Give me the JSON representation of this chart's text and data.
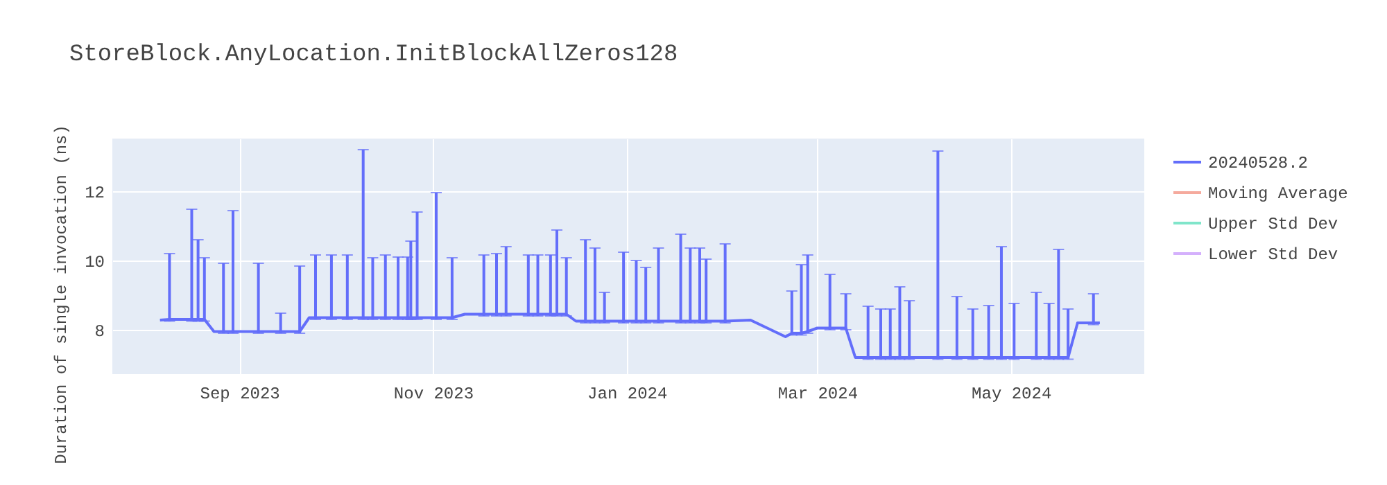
{
  "chart_data": {
    "type": "line",
    "title": "StoreBlock.AnyLocation.InitBlockAllZeros128",
    "ylabel": "Duration of single invocation (ns)",
    "x": [
      "2023-08-07",
      "2023-08-10",
      "2023-08-14",
      "2023-08-17",
      "2023-08-19",
      "2023-08-21",
      "2023-08-24",
      "2023-08-27",
      "2023-08-30",
      "2023-09-03",
      "2023-09-07",
      "2023-09-10",
      "2023-09-14",
      "2023-09-17",
      "2023-09-20",
      "2023-09-23",
      "2023-09-25",
      "2023-09-30",
      "2023-10-05",
      "2023-10-08",
      "2023-10-10",
      "2023-10-13",
      "2023-10-17",
      "2023-10-21",
      "2023-10-24",
      "2023-10-25",
      "2023-10-27",
      "2023-10-30",
      "2023-11-02",
      "2023-11-07",
      "2023-11-11",
      "2023-11-17",
      "2023-11-21",
      "2023-11-24",
      "2023-11-28",
      "2023-12-01",
      "2023-12-04",
      "2023-12-08",
      "2023-12-10",
      "2023-12-13",
      "2023-12-16",
      "2023-12-19",
      "2023-12-22",
      "2023-12-25",
      "2023-12-28",
      "2023-12-31",
      "2024-01-04",
      "2024-01-07",
      "2024-01-11",
      "2024-01-14",
      "2024-01-18",
      "2024-01-21",
      "2024-01-24",
      "2024-01-26",
      "2024-02-01",
      "2024-02-09",
      "2024-02-20",
      "2024-02-22",
      "2024-02-25",
      "2024-02-27",
      "2024-03-01",
      "2024-03-05",
      "2024-03-10",
      "2024-03-13",
      "2024-03-17",
      "2024-03-21",
      "2024-03-24",
      "2024-03-27",
      "2024-03-30",
      "2024-04-03",
      "2024-04-08",
      "2024-04-14",
      "2024-04-19",
      "2024-04-24",
      "2024-04-28",
      "2024-05-02",
      "2024-05-09",
      "2024-05-13",
      "2024-05-16",
      "2024-05-19",
      "2024-05-22",
      "2024-05-27",
      "2024-05-29"
    ],
    "series": [
      {
        "name": "20240528.2",
        "color": "#636efa",
        "values": [
          8.28,
          8.3,
          8.3,
          8.3,
          8.3,
          8.3,
          7.95,
          7.95,
          7.95,
          7.95,
          7.95,
          7.95,
          7.95,
          7.95,
          7.95,
          8.35,
          8.35,
          8.35,
          8.35,
          8.35,
          8.35,
          8.35,
          8.35,
          8.35,
          8.35,
          8.35,
          8.35,
          8.35,
          8.35,
          8.35,
          8.45,
          8.45,
          8.45,
          8.45,
          8.45,
          8.45,
          8.45,
          8.45,
          8.45,
          8.45,
          8.25,
          8.25,
          8.25,
          8.25,
          8.25,
          8.25,
          8.25,
          8.25,
          8.25,
          8.25,
          8.25,
          8.25,
          8.25,
          8.25,
          8.25,
          8.28,
          7.8,
          7.9,
          7.9,
          7.95,
          8.05,
          8.05,
          8.05,
          7.2,
          7.2,
          7.2,
          7.2,
          7.2,
          7.2,
          7.2,
          7.2,
          7.2,
          7.2,
          7.2,
          7.2,
          7.2,
          7.2,
          7.2,
          7.2,
          7.2,
          8.2,
          8.2,
          8.2
        ],
        "errors": [
          null,
          [
            8.25,
            10.2
          ],
          null,
          [
            8.25,
            11.48
          ],
          [
            8.25,
            10.6
          ],
          [
            8.25,
            10.08
          ],
          null,
          [
            7.9,
            9.92
          ],
          [
            7.9,
            11.44
          ],
          null,
          [
            7.9,
            9.92
          ],
          null,
          [
            7.9,
            8.48
          ],
          null,
          [
            7.9,
            9.84
          ],
          null,
          [
            8.3,
            10.16
          ],
          [
            8.3,
            10.16
          ],
          [
            8.3,
            10.16
          ],
          null,
          [
            8.3,
            13.2
          ],
          [
            8.3,
            10.08
          ],
          [
            8.3,
            10.16
          ],
          [
            8.3,
            10.1
          ],
          [
            8.3,
            10.1
          ],
          [
            8.3,
            10.56
          ],
          [
            8.3,
            11.4
          ],
          null,
          [
            8.3,
            11.96
          ],
          [
            8.3,
            10.08
          ],
          null,
          [
            8.4,
            10.16
          ],
          [
            8.4,
            10.2
          ],
          [
            8.4,
            10.4
          ],
          null,
          [
            8.4,
            10.16
          ],
          [
            8.4,
            10.16
          ],
          [
            8.4,
            10.16
          ],
          [
            8.4,
            10.88
          ],
          [
            8.4,
            10.08
          ],
          null,
          [
            8.2,
            10.6
          ],
          [
            8.2,
            10.36
          ],
          [
            8.2,
            9.08
          ],
          null,
          [
            8.2,
            10.24
          ],
          [
            8.2,
            10.0
          ],
          [
            8.2,
            9.8
          ],
          [
            8.2,
            10.36
          ],
          null,
          [
            8.2,
            10.76
          ],
          [
            8.2,
            10.36
          ],
          [
            8.2,
            10.36
          ],
          [
            8.2,
            10.04
          ],
          [
            8.2,
            10.48
          ],
          null,
          null,
          [
            7.85,
            9.12
          ],
          [
            7.85,
            9.88
          ],
          [
            7.9,
            10.16
          ],
          null,
          [
            8.0,
            9.6
          ],
          [
            8.0,
            9.04
          ],
          null,
          [
            7.15,
            8.68
          ],
          [
            7.15,
            8.6
          ],
          [
            7.15,
            8.6
          ],
          [
            7.15,
            9.24
          ],
          [
            7.15,
            8.84
          ],
          null,
          [
            7.15,
            13.16
          ],
          [
            7.15,
            8.96
          ],
          [
            7.15,
            8.6
          ],
          [
            7.15,
            8.7
          ],
          [
            7.15,
            10.4
          ],
          [
            7.15,
            8.76
          ],
          [
            7.15,
            9.08
          ],
          [
            7.15,
            8.76
          ],
          [
            7.15,
            10.32
          ],
          [
            7.15,
            8.6
          ],
          null,
          [
            8.15,
            9.04
          ],
          null
        ]
      },
      {
        "name": "Moving Average",
        "color": "#f5aa9d",
        "values": [
          null,
          null,
          null,
          null,
          null,
          null,
          null,
          null,
          null,
          null,
          null,
          null,
          null,
          null,
          null,
          null,
          null,
          null,
          null,
          null,
          null,
          null,
          null,
          null,
          null,
          null,
          null,
          null,
          null,
          null,
          null,
          null,
          null,
          null,
          null,
          null,
          null,
          null,
          null,
          null,
          null,
          null,
          null,
          null,
          null,
          null,
          null,
          null,
          null,
          null,
          null,
          null,
          null,
          null,
          null,
          null,
          null,
          null,
          null,
          null,
          null,
          null,
          null,
          null,
          null,
          null,
          null,
          null,
          null,
          null,
          null,
          null,
          null,
          null,
          null,
          null,
          null,
          null,
          null,
          null,
          null,
          null,
          null
        ]
      },
      {
        "name": "Upper Std Dev",
        "color": "#80e5ca",
        "values": [
          null,
          null,
          null,
          null,
          null,
          null,
          null,
          null,
          null,
          null,
          null,
          null,
          null,
          null,
          null,
          null,
          null,
          null,
          null,
          null,
          null,
          null,
          null,
          null,
          null,
          null,
          null,
          null,
          null,
          null,
          null,
          null,
          null,
          null,
          null,
          null,
          null,
          null,
          null,
          null,
          null,
          null,
          null,
          null,
          null,
          null,
          null,
          null,
          null,
          null,
          null,
          null,
          null,
          null,
          null,
          null,
          null,
          null,
          null,
          null,
          null,
          null,
          null,
          null,
          null,
          null,
          null,
          null,
          null,
          null,
          null,
          null,
          null,
          null,
          null,
          null,
          null,
          null,
          null,
          null,
          null,
          null,
          null
        ]
      },
      {
        "name": "Lower Std Dev",
        "color": "#d4b0fc",
        "values": [
          null,
          null,
          null,
          null,
          null,
          null,
          null,
          null,
          null,
          null,
          null,
          null,
          null,
          null,
          null,
          null,
          null,
          null,
          null,
          null,
          null,
          null,
          null,
          null,
          null,
          null,
          null,
          null,
          null,
          null,
          null,
          null,
          null,
          null,
          null,
          null,
          null,
          null,
          null,
          null,
          null,
          null,
          null,
          null,
          null,
          null,
          null,
          null,
          null,
          null,
          null,
          null,
          null,
          null,
          null,
          null,
          null,
          null,
          null,
          null,
          null,
          null,
          null,
          null,
          null,
          null,
          null,
          null,
          null,
          null,
          null,
          null,
          null,
          null,
          null,
          null,
          null,
          null,
          null,
          null,
          null,
          null,
          null
        ]
      }
    ],
    "xlim": [
      "2023-07-23",
      "2024-06-12"
    ],
    "xticks": [
      {
        "value": "2023-09-01",
        "label": "Sep 2023"
      },
      {
        "value": "2023-11-01",
        "label": "Nov 2023"
      },
      {
        "value": "2024-01-01",
        "label": "Jan 2024"
      },
      {
        "value": "2024-03-01",
        "label": "Mar 2024"
      },
      {
        "value": "2024-05-01",
        "label": "May 2024"
      }
    ],
    "ylim": [
      6.72,
      13.52
    ],
    "yticks": [
      8,
      10,
      12
    ],
    "grid": true,
    "legend": "top right",
    "marker": "none",
    "line_style": "solid"
  }
}
